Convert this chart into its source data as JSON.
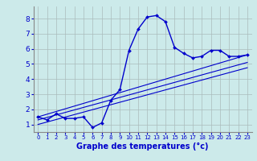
{
  "xlabel": "Graphe des temperatures (°c)",
  "bg_color": "#cceaea",
  "grid_color": "#aabcbc",
  "line_color": "#0000cc",
  "x_ticks": [
    0,
    1,
    2,
    3,
    4,
    5,
    6,
    7,
    8,
    9,
    10,
    11,
    12,
    13,
    14,
    15,
    16,
    17,
    18,
    19,
    20,
    21,
    22,
    23
  ],
  "y_ticks": [
    1,
    2,
    3,
    4,
    5,
    6,
    7,
    8
  ],
  "xlim": [
    -0.5,
    23.5
  ],
  "ylim": [
    0.5,
    8.8
  ],
  "series1_x": [
    0,
    1,
    2,
    3,
    4,
    5,
    6,
    7,
    8,
    9,
    10,
    11,
    12,
    13,
    14,
    15,
    16,
    17,
    18,
    19,
    20,
    21,
    22,
    23
  ],
  "series1_y": [
    1.5,
    1.3,
    1.7,
    1.4,
    1.4,
    1.5,
    0.8,
    1.1,
    2.6,
    3.3,
    5.9,
    7.3,
    8.1,
    8.2,
    7.8,
    6.1,
    5.7,
    5.4,
    5.5,
    5.9,
    5.9,
    5.5,
    5.5,
    5.6
  ],
  "series2_x": [
    0,
    23
  ],
  "series2_y": [
    1.5,
    5.6
  ],
  "series3_x": [
    0,
    23
  ],
  "series3_y": [
    1.3,
    5.1
  ],
  "series4_x": [
    0,
    23
  ],
  "series4_y": [
    1.0,
    4.75
  ]
}
